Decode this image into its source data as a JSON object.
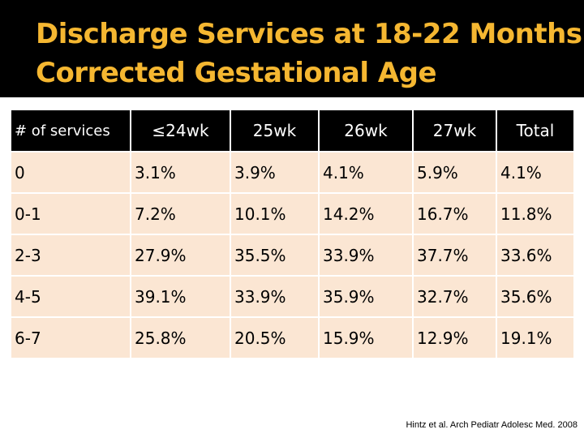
{
  "slide": {
    "title_line1": "Discharge Services at 18-22 Months",
    "title_line2": "Corrected Gestational Age"
  },
  "table": {
    "headers": [
      "# of services",
      "≤24wk",
      "25wk",
      "26wk",
      "27wk",
      "Total"
    ],
    "rows": [
      [
        "0",
        "3.1%",
        "3.9%",
        "4.1%",
        "5.9%",
        "4.1%"
      ],
      [
        "0-1",
        "7.2%",
        "10.1%",
        "14.2%",
        "16.7%",
        "11.8%"
      ],
      [
        "2-3",
        "27.9%",
        "35.5%",
        "33.9%",
        "37.7%",
        "33.6%"
      ],
      [
        "4-5",
        "39.1%",
        "33.9%",
        "35.9%",
        "32.7%",
        "35.6%"
      ],
      [
        "6-7",
        "25.8%",
        "20.5%",
        "15.9%",
        "12.9%",
        "19.1%"
      ]
    ]
  },
  "citation": "Hintz et al. Arch Pediatr Adolesc Med. 2008",
  "colors": {
    "title_bar": "#000000",
    "title_text": "#f5b731",
    "header_bg": "#000000",
    "header_text": "#ffffff",
    "cell_bg": "#fbe6d3"
  }
}
